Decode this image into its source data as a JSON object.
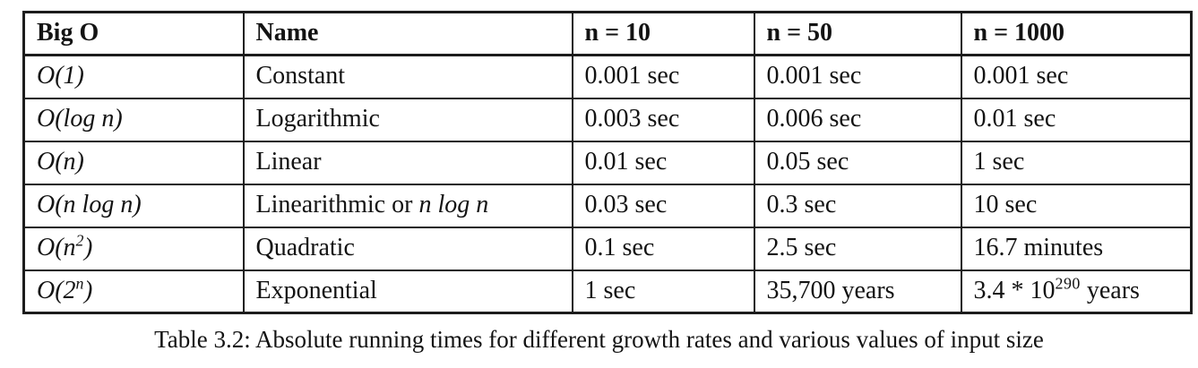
{
  "table": {
    "headers": [
      "Big O",
      "Name",
      "n = 10",
      "n = 50",
      "n = 1000"
    ],
    "rows": [
      {
        "bigo": {
          "pre": "O(1)",
          "sup": "",
          "post": ""
        },
        "name": {
          "pre": "Constant",
          "italic": ""
        },
        "n10": "0.001 sec",
        "n50": "0.001 sec",
        "n1000": {
          "pre": "0.001 sec",
          "sup": "",
          "post": ""
        }
      },
      {
        "bigo": {
          "pre": "O(log n)",
          "sup": "",
          "post": ""
        },
        "name": {
          "pre": "Logarithmic",
          "italic": ""
        },
        "n10": "0.003 sec",
        "n50": "0.006 sec",
        "n1000": {
          "pre": "0.01 sec",
          "sup": "",
          "post": ""
        }
      },
      {
        "bigo": {
          "pre": "O(n)",
          "sup": "",
          "post": ""
        },
        "name": {
          "pre": "Linear",
          "italic": ""
        },
        "n10": "0.01 sec",
        "n50": "0.05 sec",
        "n1000": {
          "pre": "1 sec",
          "sup": "",
          "post": ""
        }
      },
      {
        "bigo": {
          "pre": "O(n log n)",
          "sup": "",
          "post": ""
        },
        "name": {
          "pre": "Linearithmic or ",
          "italic": "n log n"
        },
        "n10": "0.03 sec",
        "n50": "0.3 sec",
        "n1000": {
          "pre": "10 sec",
          "sup": "",
          "post": ""
        }
      },
      {
        "bigo": {
          "pre": "O(n",
          "sup": "2",
          "post": ")"
        },
        "name": {
          "pre": "Quadratic",
          "italic": ""
        },
        "n10": "0.1 sec",
        "n50": "2.5 sec",
        "n1000": {
          "pre": "16.7 minutes",
          "sup": "",
          "post": ""
        }
      },
      {
        "bigo": {
          "pre": "O(2",
          "sup": "n",
          "post": ")"
        },
        "name": {
          "pre": "Exponential",
          "italic": ""
        },
        "n10": "1 sec",
        "n50": "35,700 years",
        "n1000": {
          "pre": "3.4 * 10",
          "sup": "290",
          "post": " years"
        }
      }
    ]
  },
  "caption": "Table 3.2: Absolute running times for different growth rates and various values of input size"
}
